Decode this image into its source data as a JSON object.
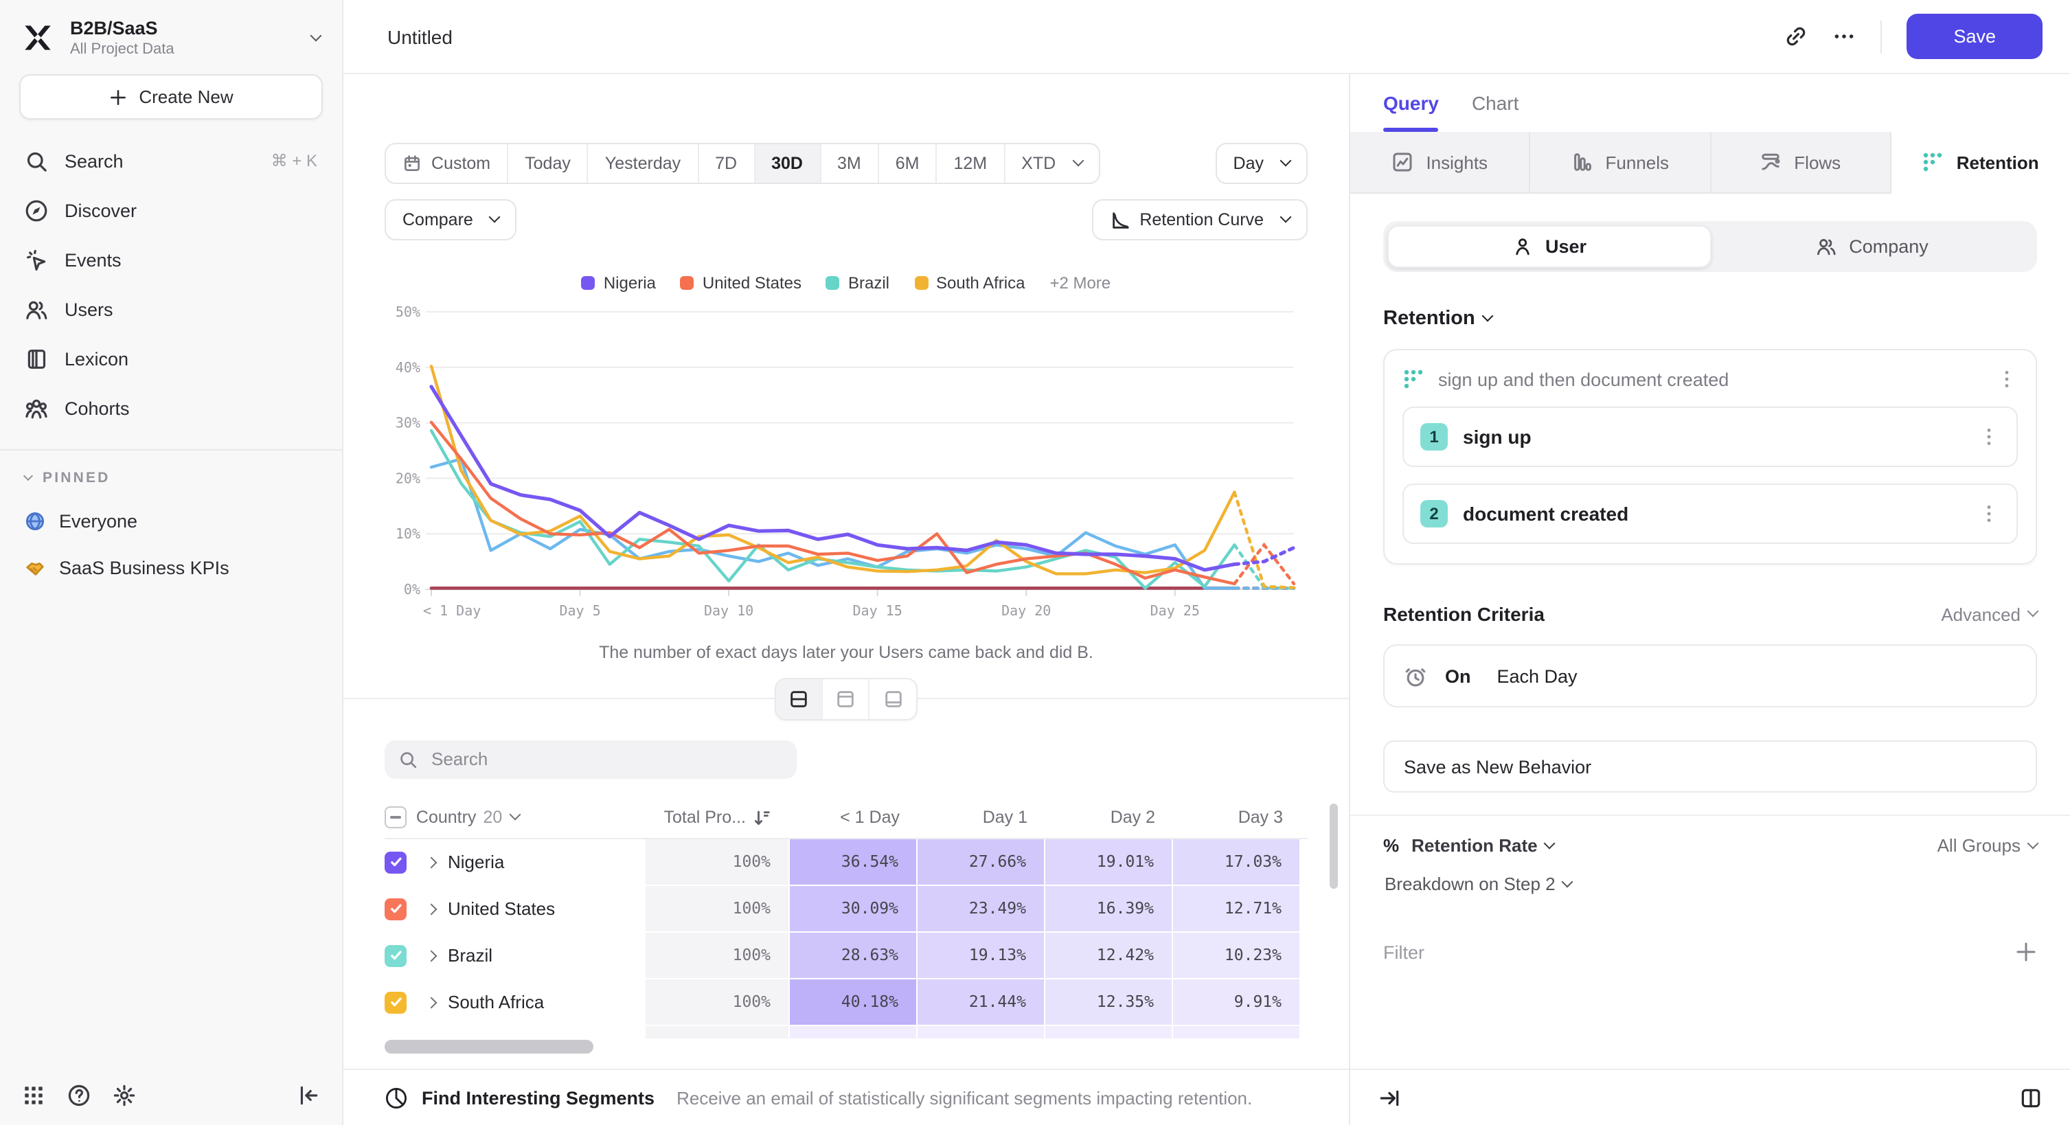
{
  "sidebar": {
    "project": "B2B/SaaS",
    "project_subtitle": "All Project Data",
    "create_label": "Create New",
    "items": [
      {
        "label": "Search",
        "icon": "search",
        "shortcut": "⌘ + K"
      },
      {
        "label": "Discover",
        "icon": "discover"
      },
      {
        "label": "Events",
        "icon": "events"
      },
      {
        "label": "Users",
        "icon": "users"
      },
      {
        "label": "Lexicon",
        "icon": "lexicon"
      },
      {
        "label": "Cohorts",
        "icon": "cohorts"
      }
    ],
    "pinned_label": "PINNED",
    "pinned": [
      {
        "label": "Everyone",
        "icon": "globe-emoji"
      },
      {
        "label": "SaaS Business KPIs",
        "icon": "handshake-emoji"
      }
    ],
    "footer_icons": [
      "grid-apps",
      "help",
      "settings",
      "collapse-sidebar"
    ]
  },
  "topbar": {
    "title": "Untitled",
    "save_label": "Save",
    "icons": [
      "link",
      "more-ellipsis"
    ],
    "save_color": "#4f46e5"
  },
  "controls": {
    "date_ranges": [
      {
        "label": "Custom",
        "icon": "calendar"
      },
      {
        "label": "Today"
      },
      {
        "label": "Yesterday"
      },
      {
        "label": "7D"
      },
      {
        "label": "30D",
        "active": true
      },
      {
        "label": "3M"
      },
      {
        "label": "6M"
      },
      {
        "label": "12M"
      },
      {
        "label": "XTD",
        "chevron": true
      }
    ],
    "granularity": "Day",
    "compare_label": "Compare",
    "chart_type": "Retention Curve"
  },
  "chart_data": {
    "type": "line",
    "title": "",
    "xlabel": "",
    "ylabel": "",
    "ylim": [
      0,
      50
    ],
    "yticks": [
      "0%",
      "10%",
      "20%",
      "30%",
      "40%",
      "50%"
    ],
    "xticks": [
      {
        "label": "< 1 Day",
        "index": 0
      },
      {
        "label": "Day 5",
        "index": 5
      },
      {
        "label": "Day 10",
        "index": 10
      },
      {
        "label": "Day 15",
        "index": 15
      },
      {
        "label": "Day 20",
        "index": 20
      },
      {
        "label": "Day 25",
        "index": 25
      }
    ],
    "grid": "horizontal",
    "legend_position": "top-center",
    "more_label": "+2 More",
    "caption": "The number of exact days later your Users came back and did B.",
    "dashed_tail_points": 3,
    "series": [
      {
        "name": "Nigeria",
        "color": "#7757f2",
        "in_legend": true,
        "width": 2.6,
        "values": [
          36.5,
          27.7,
          19.0,
          17.0,
          16.2,
          14.2,
          9.5,
          13.8,
          11.5,
          9.0,
          11.5,
          10.5,
          10.6,
          9.0,
          9.9,
          8.0,
          7.3,
          7.5,
          7.0,
          8.5,
          8.0,
          6.5,
          6.3,
          6.3,
          6.0,
          5.5,
          3.5,
          4.5,
          5.0,
          7.5
        ]
      },
      {
        "name": "United States",
        "color": "#f4704e",
        "in_legend": true,
        "width": 2.2,
        "values": [
          30.1,
          23.5,
          16.4,
          12.7,
          10.0,
          9.8,
          10.2,
          7.5,
          10.8,
          6.5,
          7.0,
          7.8,
          7.8,
          6.3,
          6.5,
          5.2,
          6.0,
          10.0,
          3.0,
          4.5,
          5.5,
          6.0,
          6.5,
          4.5,
          2.0,
          3.5,
          2.2,
          1.0,
          8.0,
          1.0
        ]
      },
      {
        "name": "Brazil",
        "color": "#66d4c8",
        "in_legend": true,
        "width": 2.2,
        "values": [
          28.6,
          19.1,
          12.4,
          10.2,
          9.5,
          12.2,
          4.5,
          9.0,
          8.5,
          7.8,
          1.5,
          8.0,
          3.5,
          5.5,
          4.8,
          4.0,
          3.5,
          3.3,
          3.5,
          3.3,
          4.0,
          5.5,
          7.0,
          5.8,
          0.2,
          4.8,
          0.5,
          8.0,
          0.3,
          0.2
        ]
      },
      {
        "name": "South Africa",
        "color": "#f2b231",
        "in_legend": true,
        "width": 2.2,
        "values": [
          40.2,
          21.4,
          12.4,
          9.9,
          10.5,
          13.2,
          6.8,
          5.5,
          6.0,
          9.5,
          9.8,
          7.5,
          4.8,
          5.8,
          4.0,
          3.3,
          3.2,
          3.5,
          4.2,
          8.8,
          5.0,
          2.8,
          2.8,
          3.5,
          3.0,
          3.8,
          7.0,
          17.5,
          0.5,
          0.3
        ]
      },
      {
        "name": "more-series-1",
        "color": "#6cb8ee",
        "in_legend": false,
        "width": 2.2,
        "values": [
          22.0,
          23.5,
          7.0,
          10.0,
          7.3,
          10.8,
          9.8,
          5.5,
          6.8,
          7.2,
          6.0,
          5.0,
          6.5,
          4.3,
          5.5,
          4.0,
          6.8,
          7.3,
          6.5,
          8.0,
          7.3,
          6.0,
          10.2,
          7.8,
          6.3,
          8.0,
          0.2,
          0.2,
          0.2,
          0.2
        ]
      },
      {
        "name": "more-series-2",
        "color": "#a84457",
        "in_legend": false,
        "width": 2.4,
        "values": [
          0.2,
          0.2,
          0.2,
          0.2,
          0.2,
          0.2,
          0.2,
          0.2,
          0.2,
          0.2,
          0.2,
          0.2,
          0.2,
          0.2,
          0.2,
          0.2,
          0.2,
          0.2,
          0.2,
          0.2,
          0.2,
          0.2,
          0.2,
          0.2,
          0.2,
          0.2,
          0.2,
          0.2,
          0.2,
          0.2
        ]
      }
    ]
  },
  "layout_toggles": [
    "split-view",
    "chart-only-view",
    "table-only-view"
  ],
  "table": {
    "search_placeholder": "Search",
    "header": {
      "country_label": "Country",
      "count": "20",
      "total_label": "Total Pro...",
      "day_cols": [
        "< 1 Day",
        "Day 1",
        "Day 2",
        "Day 3"
      ]
    },
    "rows": [
      {
        "name": "Nigeria",
        "color": "#7757f2",
        "total": "100%",
        "values": [
          "36.54%",
          "27.66%",
          "19.01%",
          "17.03%"
        ]
      },
      {
        "name": "United States",
        "color": "#f8765a",
        "total": "100%",
        "values": [
          "30.09%",
          "23.49%",
          "16.39%",
          "12.71%"
        ]
      },
      {
        "name": "Brazil",
        "color": "#7bdcd2",
        "total": "100%",
        "values": [
          "28.63%",
          "19.13%",
          "12.42%",
          "10.23%"
        ]
      },
      {
        "name": "South Africa",
        "color": "#f5b92e",
        "total": "100%",
        "values": [
          "40.18%",
          "21.44%",
          "12.35%",
          "9.91%"
        ]
      }
    ]
  },
  "main_footer": {
    "title": "Find Interesting Segments",
    "description": "Receive an email of statistically significant segments impacting retention."
  },
  "query_panel": {
    "tabs": [
      {
        "label": "Query",
        "active": true
      },
      {
        "label": "Chart",
        "active": false
      }
    ],
    "report_tabs": [
      {
        "label": "Insights",
        "icon": "insights"
      },
      {
        "label": "Funnels",
        "icon": "funnels"
      },
      {
        "label": "Flows",
        "icon": "flows"
      },
      {
        "label": "Retention",
        "icon": "retention-dots",
        "active": true
      }
    ],
    "entity_toggle": [
      {
        "label": "User",
        "icon": "person",
        "active": true
      },
      {
        "label": "Company",
        "icon": "people",
        "active": false
      }
    ],
    "section_label": "Retention",
    "behavior": {
      "title": "sign up and then document created",
      "steps": [
        {
          "num": "1",
          "label": "sign up"
        },
        {
          "num": "2",
          "label": "document created"
        }
      ]
    },
    "criteria": {
      "title": "Retention Criteria",
      "advanced_label": "Advanced",
      "on_label": "On",
      "frequency": "Each Day"
    },
    "save_behavior_label": "Save as New Behavior",
    "measure": {
      "pct_symbol": "%",
      "label": "Retention Rate",
      "groups_label": "All Groups",
      "breakdown_label": "Breakdown on Step 2"
    },
    "filter_label": "Filter",
    "footer_icons": [
      "skip-to-end",
      "panel-columns"
    ]
  }
}
